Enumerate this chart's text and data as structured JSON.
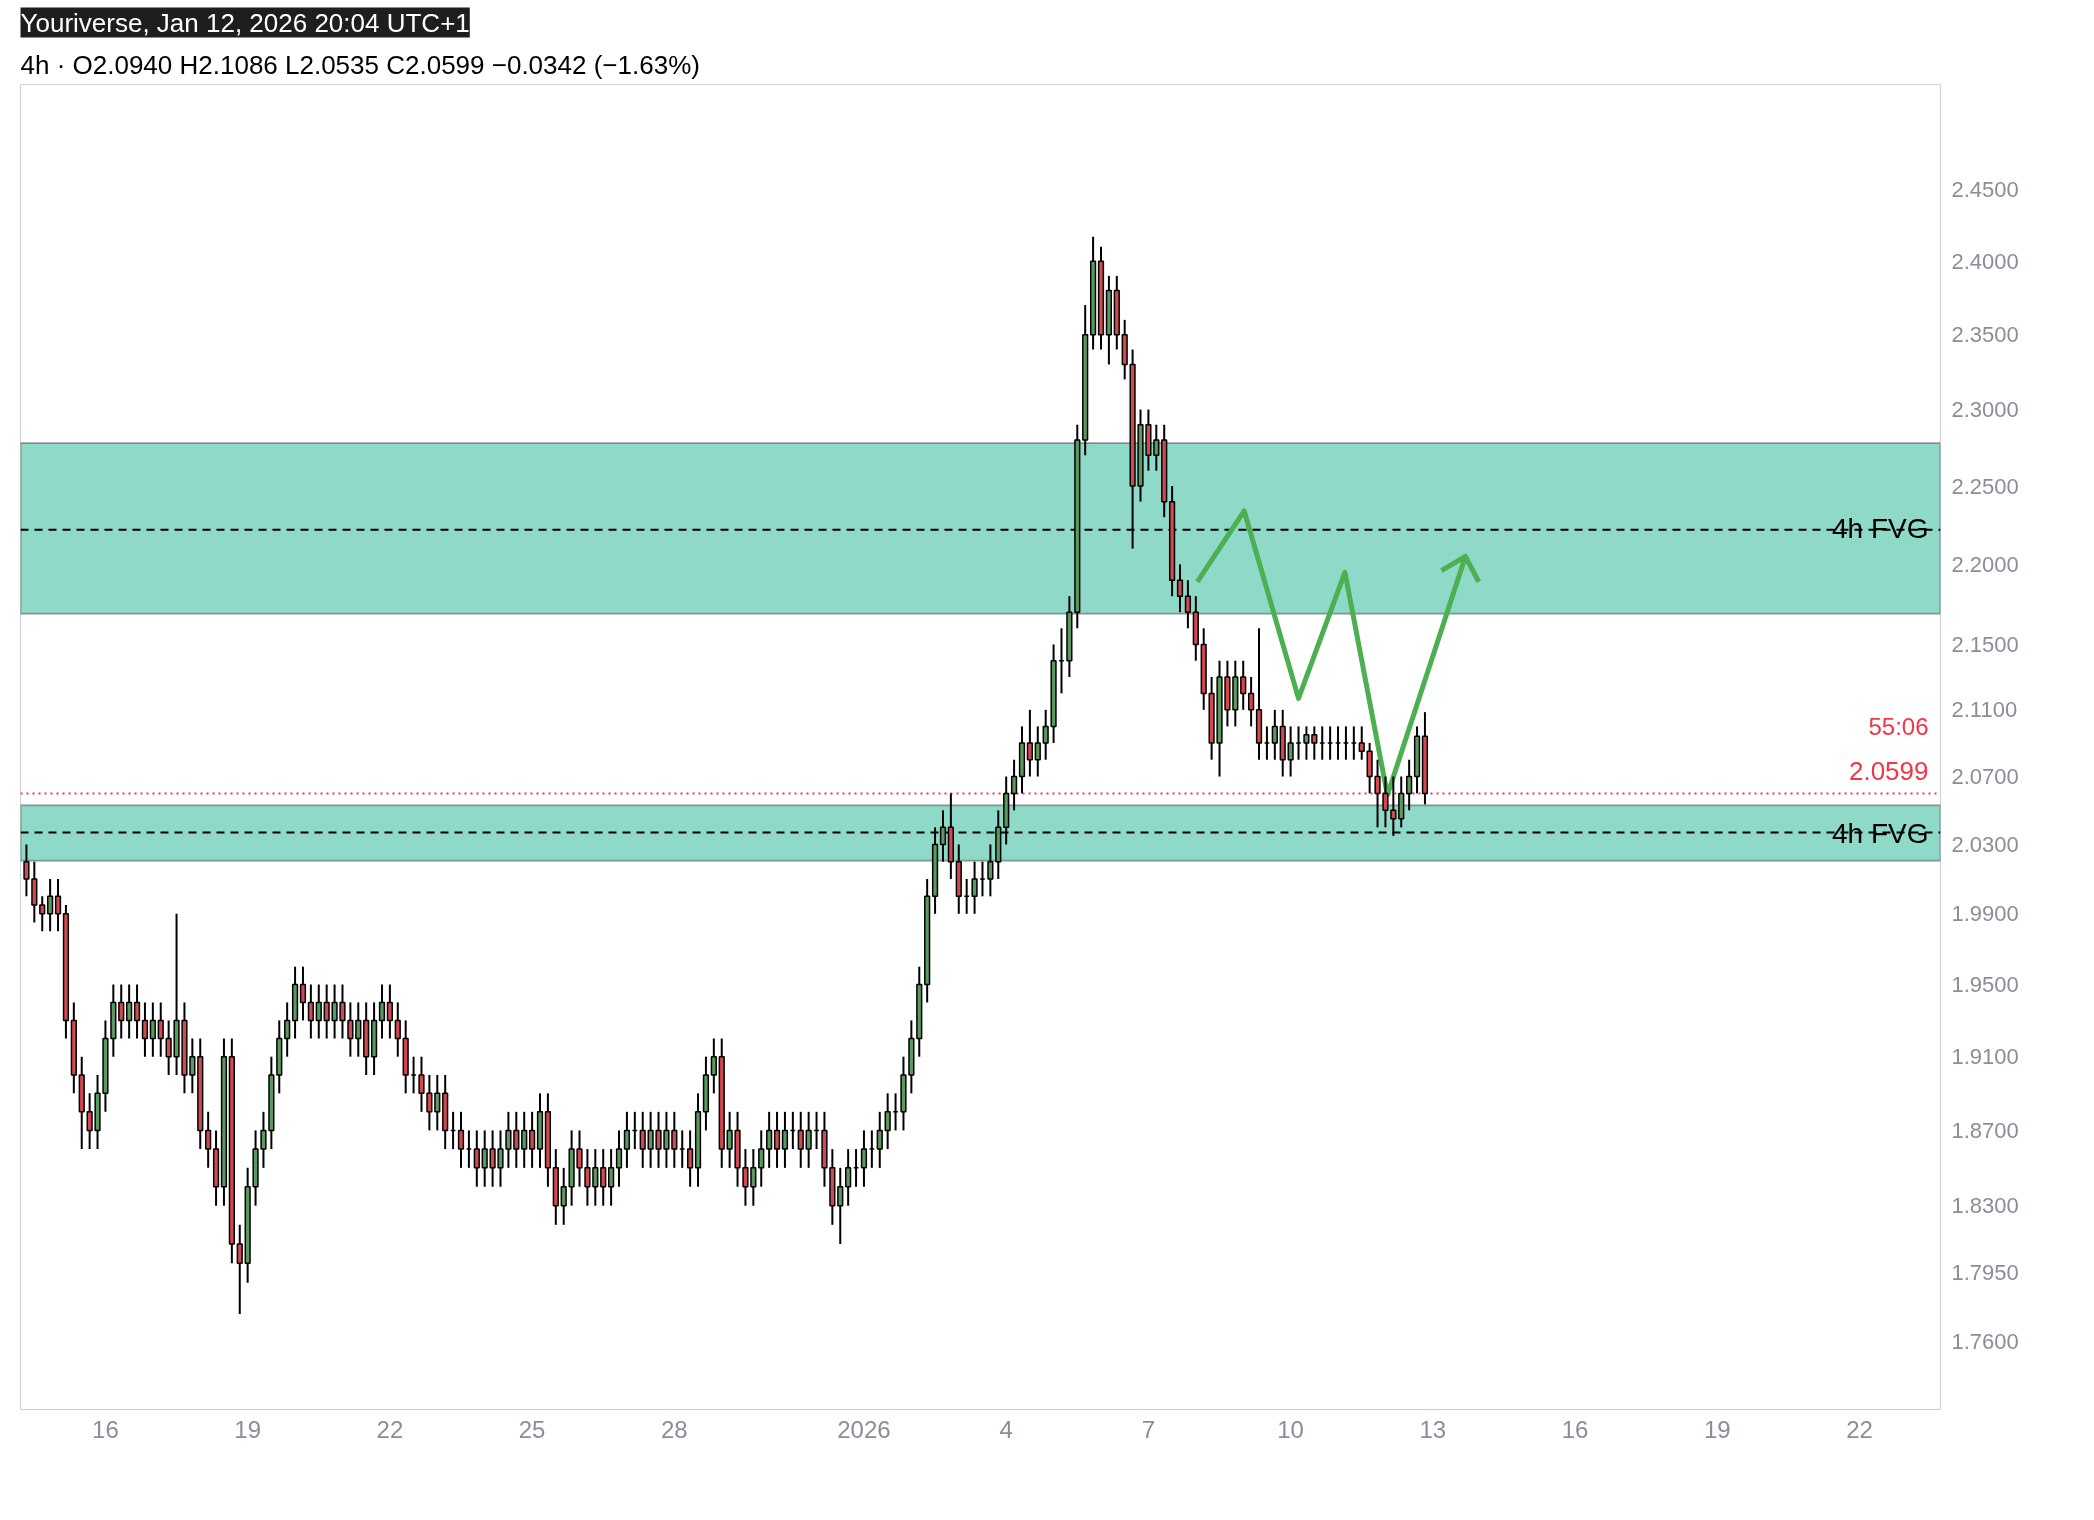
{
  "chart_data": {
    "type": "candlestick",
    "title": "Youriverse, Jan 12, 2026 20:04 UTC+1",
    "subtitle": "4h · O2.0940 H2.1086 L2.0535 C2.0599 −0.0342 (−1.63%)",
    "log": true,
    "grid": false,
    "xlim": [
      "2025-12-14T05:00",
      "2026-01-23T17:00"
    ],
    "xticks": [
      {
        "value": "2025-12-16",
        "label": "16"
      },
      {
        "value": "2025-12-19",
        "label": "19"
      },
      {
        "value": "2025-12-22",
        "label": "22"
      },
      {
        "value": "2025-12-25",
        "label": "25"
      },
      {
        "value": "2025-12-28",
        "label": "28"
      },
      {
        "value": "2026-01-01",
        "label": "2026"
      },
      {
        "value": "2026-01-04",
        "label": "4"
      },
      {
        "value": "2026-01-07",
        "label": "7"
      },
      {
        "value": "2026-01-10",
        "label": "10"
      },
      {
        "value": "2026-01-13",
        "label": "13"
      },
      {
        "value": "2026-01-16",
        "label": "16"
      },
      {
        "value": "2026-01-19",
        "label": "19"
      },
      {
        "value": "2026-01-22",
        "label": "22"
      }
    ],
    "ylim": [
      1.726,
      2.525
    ],
    "yticks": [
      {
        "value": 2.45,
        "label": "2.4500"
      },
      {
        "value": 2.4,
        "label": "2.4000"
      },
      {
        "value": 2.35,
        "label": "2.3500"
      },
      {
        "value": 2.3,
        "label": "2.3000"
      },
      {
        "value": 2.25,
        "label": "2.2500"
      },
      {
        "value": 2.2,
        "label": "2.2000"
      },
      {
        "value": 2.15,
        "label": "2.1500"
      },
      {
        "value": 2.11,
        "label": "2.1100"
      },
      {
        "value": 2.07,
        "label": "2.0700"
      },
      {
        "value": 2.03,
        "label": "2.0300"
      },
      {
        "value": 1.99,
        "label": "1.9900"
      },
      {
        "value": 1.95,
        "label": "1.9500"
      },
      {
        "value": 1.91,
        "label": "1.9100"
      },
      {
        "value": 1.87,
        "label": "1.8700"
      },
      {
        "value": 1.83,
        "label": "1.8300"
      },
      {
        "value": 1.795,
        "label": "1.7950"
      },
      {
        "value": 1.76,
        "label": "1.7600"
      }
    ],
    "x": [
      "2025-12-14T08:00",
      "2025-12-14T12:00",
      "2025-12-14T16:00",
      "2025-12-14T20:00",
      "2025-12-15T00:00",
      "2025-12-15T04:00",
      "2025-12-15T08:00",
      "2025-12-15T12:00",
      "2025-12-15T16:00",
      "2025-12-15T20:00",
      "2025-12-16T00:00",
      "2025-12-16T04:00",
      "2025-12-16T08:00",
      "2025-12-16T12:00",
      "2025-12-16T16:00",
      "2025-12-16T20:00",
      "2025-12-17T00:00",
      "2025-12-17T04:00",
      "2025-12-17T08:00",
      "2025-12-17T12:00",
      "2025-12-17T16:00",
      "2025-12-17T20:00",
      "2025-12-18T00:00",
      "2025-12-18T04:00",
      "2025-12-18T08:00",
      "2025-12-18T12:00",
      "2025-12-18T16:00",
      "2025-12-18T20:00",
      "2025-12-19T00:00",
      "2025-12-19T04:00",
      "2025-12-19T08:00",
      "2025-12-19T12:00",
      "2025-12-19T16:00",
      "2025-12-19T20:00",
      "2025-12-20T00:00",
      "2025-12-20T04:00",
      "2025-12-20T08:00",
      "2025-12-20T12:00",
      "2025-12-20T16:00",
      "2025-12-20T20:00",
      "2025-12-21T00:00",
      "2025-12-21T04:00",
      "2025-12-21T08:00",
      "2025-12-21T12:00",
      "2025-12-21T16:00",
      "2025-12-21T20:00",
      "2025-12-22T00:00",
      "2025-12-22T04:00",
      "2025-12-22T08:00",
      "2025-12-22T12:00",
      "2025-12-22T16:00",
      "2025-12-22T20:00",
      "2025-12-23T00:00",
      "2025-12-23T04:00",
      "2025-12-23T08:00",
      "2025-12-23T12:00",
      "2025-12-23T16:00",
      "2025-12-23T20:00",
      "2025-12-24T00:00",
      "2025-12-24T04:00",
      "2025-12-24T08:00",
      "2025-12-24T12:00",
      "2025-12-24T16:00",
      "2025-12-24T20:00",
      "2025-12-25T00:00",
      "2025-12-25T04:00",
      "2025-12-25T08:00",
      "2025-12-25T12:00",
      "2025-12-25T16:00",
      "2025-12-25T20:00",
      "2025-12-26T00:00",
      "2025-12-26T04:00",
      "2025-12-26T08:00",
      "2025-12-26T12:00",
      "2025-12-26T16:00",
      "2025-12-26T20:00",
      "2025-12-27T00:00",
      "2025-12-27T04:00",
      "2025-12-27T08:00",
      "2025-12-27T12:00",
      "2025-12-27T16:00",
      "2025-12-27T20:00",
      "2025-12-28T00:00",
      "2025-12-28T04:00",
      "2025-12-28T08:00",
      "2025-12-28T12:00",
      "2025-12-28T16:00",
      "2025-12-28T20:00",
      "2025-12-29T00:00",
      "2025-12-29T04:00",
      "2025-12-29T08:00",
      "2025-12-29T12:00",
      "2025-12-29T16:00",
      "2025-12-29T20:00",
      "2025-12-30T00:00",
      "2025-12-30T04:00",
      "2025-12-30T08:00",
      "2025-12-30T12:00",
      "2025-12-30T16:00",
      "2025-12-30T20:00",
      "2025-12-31T00:00",
      "2025-12-31T04:00",
      "2025-12-31T08:00",
      "2025-12-31T12:00",
      "2025-12-31T16:00",
      "2025-12-31T20:00",
      "2026-01-01T00:00",
      "2026-01-01T04:00",
      "2026-01-01T08:00",
      "2026-01-01T12:00",
      "2026-01-01T16:00",
      "2026-01-01T20:00",
      "2026-01-02T00:00",
      "2026-01-02T04:00",
      "2026-01-02T08:00",
      "2026-01-02T12:00",
      "2026-01-02T16:00",
      "2026-01-02T20:00",
      "2026-01-03T00:00",
      "2026-01-03T04:00",
      "2026-01-03T08:00",
      "2026-01-03T12:00",
      "2026-01-03T16:00",
      "2026-01-03T20:00",
      "2026-01-04T00:00",
      "2026-01-04T04:00",
      "2026-01-04T08:00",
      "2026-01-04T12:00",
      "2026-01-04T16:00",
      "2026-01-04T20:00",
      "2026-01-05T00:00",
      "2026-01-05T04:00",
      "2026-01-05T08:00",
      "2026-01-05T12:00",
      "2026-01-05T16:00",
      "2026-01-05T20:00",
      "2026-01-06T00:00",
      "2026-01-06T04:00",
      "2026-01-06T08:00",
      "2026-01-06T12:00",
      "2026-01-06T16:00",
      "2026-01-06T20:00",
      "2026-01-07T00:00",
      "2026-01-07T04:00",
      "2026-01-07T08:00",
      "2026-01-07T12:00",
      "2026-01-07T16:00",
      "2026-01-07T20:00",
      "2026-01-08T00:00",
      "2026-01-08T04:00",
      "2026-01-08T08:00",
      "2026-01-08T12:00",
      "2026-01-08T16:00",
      "2026-01-08T20:00",
      "2026-01-09T00:00",
      "2026-01-09T04:00",
      "2026-01-09T08:00",
      "2026-01-09T12:00",
      "2026-01-09T16:00",
      "2026-01-09T20:00",
      "2026-01-10T00:00",
      "2026-01-10T04:00",
      "2026-01-10T08:00",
      "2026-01-10T12:00",
      "2026-01-10T16:00",
      "2026-01-10T20:00",
      "2026-01-11T00:00",
      "2026-01-11T04:00",
      "2026-01-11T08:00",
      "2026-01-11T12:00",
      "2026-01-11T16:00",
      "2026-01-11T20:00",
      "2026-01-12T00:00",
      "2026-01-12T04:00",
      "2026-01-12T08:00",
      "2026-01-12T12:00",
      "2026-01-12T16:00",
      "2026-01-12T20:00"
    ],
    "ohlc": [
      [
        2.02,
        2.03,
        2.0,
        2.01
      ],
      [
        2.01,
        2.02,
        1.985,
        1.995
      ],
      [
        1.995,
        2.0,
        1.98,
        1.99
      ],
      [
        1.99,
        2.01,
        1.98,
        2.0
      ],
      [
        2.0,
        2.01,
        1.98,
        1.99
      ],
      [
        1.99,
        1.995,
        1.92,
        1.93
      ],
      [
        1.93,
        1.94,
        1.89,
        1.9
      ],
      [
        1.9,
        1.91,
        1.86,
        1.88
      ],
      [
        1.88,
        1.89,
        1.86,
        1.87
      ],
      [
        1.87,
        1.9,
        1.86,
        1.89
      ],
      [
        1.89,
        1.93,
        1.88,
        1.92
      ],
      [
        1.92,
        1.95,
        1.91,
        1.94
      ],
      [
        1.94,
        1.95,
        1.92,
        1.93
      ],
      [
        1.93,
        1.95,
        1.92,
        1.94
      ],
      [
        1.94,
        1.95,
        1.92,
        1.93
      ],
      [
        1.93,
        1.94,
        1.91,
        1.92
      ],
      [
        1.92,
        1.94,
        1.91,
        1.93
      ],
      [
        1.93,
        1.94,
        1.91,
        1.92
      ],
      [
        1.92,
        1.93,
        1.9,
        1.91
      ],
      [
        1.91,
        1.99,
        1.9,
        1.93
      ],
      [
        1.93,
        1.94,
        1.89,
        1.9
      ],
      [
        1.9,
        1.92,
        1.89,
        1.91
      ],
      [
        1.91,
        1.92,
        1.86,
        1.87
      ],
      [
        1.87,
        1.88,
        1.85,
        1.86
      ],
      [
        1.86,
        1.87,
        1.83,
        1.84
      ],
      [
        1.84,
        1.92,
        1.83,
        1.91
      ],
      [
        1.91,
        1.92,
        1.8,
        1.81
      ],
      [
        1.81,
        1.82,
        1.774,
        1.8
      ],
      [
        1.8,
        1.85,
        1.79,
        1.84
      ],
      [
        1.84,
        1.87,
        1.83,
        1.86
      ],
      [
        1.86,
        1.88,
        1.85,
        1.87
      ],
      [
        1.87,
        1.91,
        1.86,
        1.9
      ],
      [
        1.9,
        1.93,
        1.89,
        1.92
      ],
      [
        1.92,
        1.94,
        1.91,
        1.93
      ],
      [
        1.93,
        1.96,
        1.92,
        1.95
      ],
      [
        1.95,
        1.96,
        1.93,
        1.94
      ],
      [
        1.94,
        1.95,
        1.92,
        1.93
      ],
      [
        1.93,
        1.95,
        1.92,
        1.94
      ],
      [
        1.94,
        1.95,
        1.92,
        1.93
      ],
      [
        1.93,
        1.95,
        1.92,
        1.94
      ],
      [
        1.94,
        1.95,
        1.92,
        1.93
      ],
      [
        1.93,
        1.94,
        1.91,
        1.92
      ],
      [
        1.92,
        1.94,
        1.91,
        1.93
      ],
      [
        1.93,
        1.94,
        1.9,
        1.91
      ],
      [
        1.91,
        1.94,
        1.9,
        1.93
      ],
      [
        1.93,
        1.95,
        1.92,
        1.94
      ],
      [
        1.94,
        1.95,
        1.92,
        1.93
      ],
      [
        1.93,
        1.94,
        1.91,
        1.92
      ],
      [
        1.92,
        1.93,
        1.89,
        1.9
      ],
      [
        1.9,
        1.91,
        1.89,
        1.9
      ],
      [
        1.9,
        1.91,
        1.88,
        1.89
      ],
      [
        1.89,
        1.9,
        1.87,
        1.88
      ],
      [
        1.88,
        1.9,
        1.87,
        1.89
      ],
      [
        1.89,
        1.9,
        1.86,
        1.87
      ],
      [
        1.87,
        1.88,
        1.86,
        1.87
      ],
      [
        1.87,
        1.88,
        1.85,
        1.86
      ],
      [
        1.86,
        1.87,
        1.85,
        1.86
      ],
      [
        1.86,
        1.87,
        1.84,
        1.85
      ],
      [
        1.85,
        1.87,
        1.84,
        1.86
      ],
      [
        1.86,
        1.87,
        1.84,
        1.85
      ],
      [
        1.85,
        1.87,
        1.84,
        1.86
      ],
      [
        1.86,
        1.88,
        1.85,
        1.87
      ],
      [
        1.87,
        1.88,
        1.85,
        1.86
      ],
      [
        1.86,
        1.88,
        1.85,
        1.87
      ],
      [
        1.87,
        1.88,
        1.85,
        1.86
      ],
      [
        1.86,
        1.89,
        1.85,
        1.88
      ],
      [
        1.88,
        1.89,
        1.84,
        1.85
      ],
      [
        1.85,
        1.86,
        1.82,
        1.83
      ],
      [
        1.83,
        1.85,
        1.82,
        1.84
      ],
      [
        1.84,
        1.87,
        1.83,
        1.86
      ],
      [
        1.86,
        1.87,
        1.84,
        1.85
      ],
      [
        1.85,
        1.86,
        1.83,
        1.84
      ],
      [
        1.84,
        1.86,
        1.83,
        1.85
      ],
      [
        1.85,
        1.86,
        1.83,
        1.84
      ],
      [
        1.84,
        1.86,
        1.83,
        1.85
      ],
      [
        1.85,
        1.87,
        1.84,
        1.86
      ],
      [
        1.86,
        1.88,
        1.85,
        1.87
      ],
      [
        1.87,
        1.88,
        1.86,
        1.87
      ],
      [
        1.87,
        1.88,
        1.85,
        1.86
      ],
      [
        1.86,
        1.88,
        1.85,
        1.87
      ],
      [
        1.87,
        1.88,
        1.85,
        1.86
      ],
      [
        1.86,
        1.88,
        1.85,
        1.87
      ],
      [
        1.87,
        1.88,
        1.85,
        1.86
      ],
      [
        1.86,
        1.87,
        1.85,
        1.86
      ],
      [
        1.86,
        1.87,
        1.84,
        1.85
      ],
      [
        1.85,
        1.89,
        1.84,
        1.88
      ],
      [
        1.88,
        1.91,
        1.87,
        1.9
      ],
      [
        1.9,
        1.92,
        1.89,
        1.91
      ],
      [
        1.91,
        1.92,
        1.85,
        1.86
      ],
      [
        1.86,
        1.88,
        1.85,
        1.87
      ],
      [
        1.87,
        1.88,
        1.84,
        1.85
      ],
      [
        1.85,
        1.86,
        1.83,
        1.84
      ],
      [
        1.84,
        1.86,
        1.83,
        1.85
      ],
      [
        1.85,
        1.87,
        1.84,
        1.86
      ],
      [
        1.86,
        1.88,
        1.85,
        1.87
      ],
      [
        1.87,
        1.88,
        1.85,
        1.86
      ],
      [
        1.86,
        1.88,
        1.85,
        1.87
      ],
      [
        1.87,
        1.88,
        1.86,
        1.87
      ],
      [
        1.87,
        1.88,
        1.85,
        1.86
      ],
      [
        1.86,
        1.88,
        1.85,
        1.87
      ],
      [
        1.87,
        1.88,
        1.86,
        1.87
      ],
      [
        1.87,
        1.88,
        1.84,
        1.85
      ],
      [
        1.85,
        1.86,
        1.82,
        1.83
      ],
      [
        1.83,
        1.85,
        1.81,
        1.84
      ],
      [
        1.84,
        1.86,
        1.83,
        1.85
      ],
      [
        1.85,
        1.86,
        1.84,
        1.85
      ],
      [
        1.85,
        1.87,
        1.84,
        1.86
      ],
      [
        1.86,
        1.87,
        1.85,
        1.86
      ],
      [
        1.86,
        1.88,
        1.85,
        1.87
      ],
      [
        1.87,
        1.89,
        1.86,
        1.88
      ],
      [
        1.88,
        1.89,
        1.87,
        1.88
      ],
      [
        1.88,
        1.91,
        1.87,
        1.9
      ],
      [
        1.9,
        1.93,
        1.89,
        1.92
      ],
      [
        1.92,
        1.96,
        1.91,
        1.95
      ],
      [
        1.95,
        2.01,
        1.94,
        2.0
      ],
      [
        2.0,
        2.04,
        1.99,
        2.03
      ],
      [
        2.03,
        2.05,
        2.02,
        2.04
      ],
      [
        2.04,
        2.06,
        2.01,
        2.02
      ],
      [
        2.02,
        2.03,
        1.99,
        2.0
      ],
      [
        2.0,
        2.01,
        1.99,
        2.0
      ],
      [
        2.0,
        2.02,
        1.99,
        2.01
      ],
      [
        2.01,
        2.02,
        2.0,
        2.01
      ],
      [
        2.01,
        2.03,
        2.0,
        2.02
      ],
      [
        2.02,
        2.05,
        2.01,
        2.04
      ],
      [
        2.04,
        2.07,
        2.03,
        2.06
      ],
      [
        2.06,
        2.08,
        2.05,
        2.07
      ],
      [
        2.07,
        2.1,
        2.06,
        2.09
      ],
      [
        2.09,
        2.11,
        2.07,
        2.08
      ],
      [
        2.08,
        2.1,
        2.07,
        2.09
      ],
      [
        2.09,
        2.11,
        2.08,
        2.1
      ],
      [
        2.1,
        2.15,
        2.09,
        2.14
      ],
      [
        2.14,
        2.16,
        2.12,
        2.14
      ],
      [
        2.14,
        2.18,
        2.13,
        2.17
      ],
      [
        2.17,
        2.29,
        2.16,
        2.28
      ],
      [
        2.28,
        2.37,
        2.27,
        2.35
      ],
      [
        2.35,
        2.417,
        2.34,
        2.4
      ],
      [
        2.4,
        2.41,
        2.34,
        2.35
      ],
      [
        2.35,
        2.39,
        2.33,
        2.38
      ],
      [
        2.38,
        2.39,
        2.34,
        2.35
      ],
      [
        2.35,
        2.36,
        2.32,
        2.33
      ],
      [
        2.33,
        2.34,
        2.21,
        2.25
      ],
      [
        2.25,
        2.3,
        2.24,
        2.29
      ],
      [
        2.29,
        2.3,
        2.26,
        2.27
      ],
      [
        2.27,
        2.29,
        2.26,
        2.28
      ],
      [
        2.28,
        2.29,
        2.23,
        2.24
      ],
      [
        2.24,
        2.25,
        2.18,
        2.19
      ],
      [
        2.19,
        2.2,
        2.17,
        2.18
      ],
      [
        2.18,
        2.19,
        2.16,
        2.17
      ],
      [
        2.17,
        2.18,
        2.14,
        2.15
      ],
      [
        2.15,
        2.16,
        2.11,
        2.12
      ],
      [
        2.12,
        2.13,
        2.08,
        2.09
      ],
      [
        2.09,
        2.14,
        2.07,
        2.13
      ],
      [
        2.13,
        2.14,
        2.1,
        2.11
      ],
      [
        2.11,
        2.14,
        2.1,
        2.13
      ],
      [
        2.13,
        2.14,
        2.11,
        2.12
      ],
      [
        2.12,
        2.13,
        2.1,
        2.11
      ],
      [
        2.11,
        2.16,
        2.08,
        2.09
      ],
      [
        2.09,
        2.1,
        2.08,
        2.09
      ],
      [
        2.09,
        2.11,
        2.08,
        2.1
      ],
      [
        2.1,
        2.11,
        2.07,
        2.08
      ],
      [
        2.08,
        2.1,
        2.07,
        2.09
      ],
      [
        2.09,
        2.1,
        2.08,
        2.09
      ],
      [
        2.09,
        2.1,
        2.08,
        2.095
      ],
      [
        2.095,
        2.1,
        2.08,
        2.09
      ],
      [
        2.09,
        2.1,
        2.08,
        2.09
      ],
      [
        2.09,
        2.1,
        2.08,
        2.09
      ],
      [
        2.09,
        2.1,
        2.08,
        2.09
      ],
      [
        2.09,
        2.1,
        2.08,
        2.09
      ],
      [
        2.09,
        2.1,
        2.08,
        2.09
      ],
      [
        2.09,
        2.1,
        2.08,
        2.085
      ],
      [
        2.085,
        2.09,
        2.06,
        2.07
      ],
      [
        2.07,
        2.08,
        2.04,
        2.06
      ],
      [
        2.06,
        2.07,
        2.04,
        2.05
      ],
      [
        2.05,
        2.07,
        2.035,
        2.045
      ],
      [
        2.045,
        2.07,
        2.04,
        2.06
      ],
      [
        2.06,
        2.08,
        2.05,
        2.07
      ],
      [
        2.07,
        2.1,
        2.06,
        2.094
      ],
      [
        2.094,
        2.1086,
        2.0535,
        2.0599
      ]
    ],
    "series": [
      {
        "type": "line",
        "color": "#4caf50",
        "x": [
          "2026-01-08T00:45",
          "2026-01-09T00:30",
          "2026-01-10T04:00",
          "2026-01-11T03:30",
          "2026-01-12T01:00",
          "2026-01-13T16:30"
        ],
        "values": [
          2.189,
          2.234,
          2.117,
          2.195,
          2.059,
          2.205
        ]
      },
      {
        "type": "line",
        "color": "#4caf50",
        "x": [
          "2026-01-13T04:20",
          "2026-01-13T16:30",
          "2026-01-13T23:15"
        ],
        "values": [
          2.196,
          2.205,
          2.189
        ]
      }
    ],
    "bands": [
      {
        "axis": "y",
        "from": 2.169,
        "to": 2.278,
        "label": "4h FVG",
        "color": "#8fd9c9"
      },
      {
        "axis": "y",
        "from": 2.0205,
        "to": 2.053,
        "label": "4h FVG",
        "color": "#8fd9c9"
      }
    ],
    "ref_lines": [
      {
        "axis": "y",
        "value": 2.222,
        "line_style": "dashed",
        "color": "#000000"
      },
      {
        "axis": "y",
        "value": 2.037,
        "line_style": "dashed",
        "color": "#000000"
      },
      {
        "axis": "y",
        "value": 2.0599,
        "label": "2.0599",
        "line_style": "dotted",
        "color": "#f23645"
      }
    ],
    "annotations": [
      "55:06"
    ]
  }
}
